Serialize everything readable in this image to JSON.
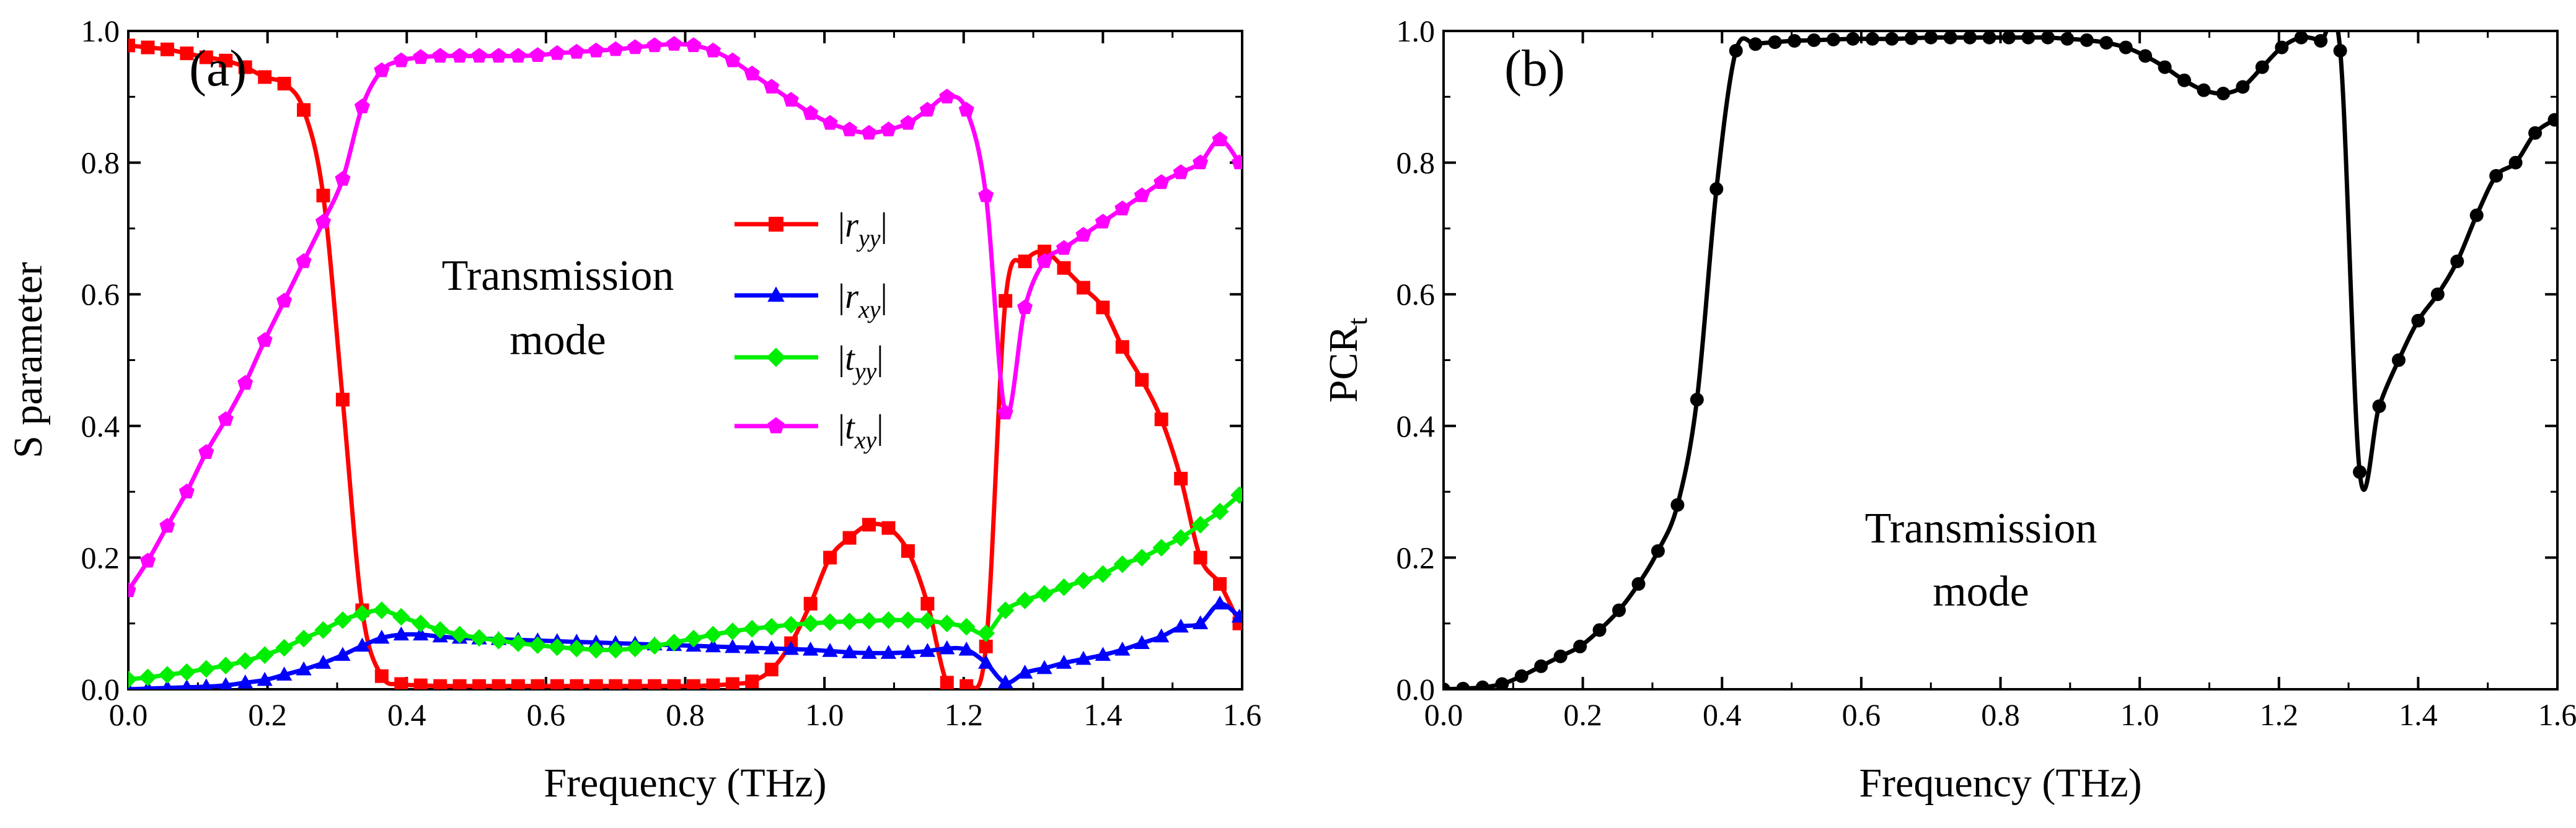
{
  "figure": {
    "panels": [
      "(a)",
      "(b)"
    ]
  },
  "chart_data": [
    {
      "type": "line",
      "panel_label": "(a)",
      "annotation": [
        "Transmission",
        "mode"
      ],
      "xlabel": "Frequency (THz)",
      "ylabel": "S parameter",
      "xlim": [
        0,
        1.6
      ],
      "ylim": [
        0,
        1.0
      ],
      "xticks": [
        "0.0",
        "0.2",
        "0.4",
        "0.6",
        "0.8",
        "1.0",
        "1.2",
        "1.4",
        "1.6"
      ],
      "yticks": [
        "0.0",
        "0.2",
        "0.4",
        "0.6",
        "0.8",
        "1.0"
      ],
      "grid": false,
      "legend_position": "center",
      "series": [
        {
          "name": "|r_yy|",
          "legend_main": "r",
          "legend_sub": "yy",
          "color": "#ff0000",
          "marker": "square",
          "x": [
            0.0,
            0.028,
            0.056,
            0.084,
            0.112,
            0.14,
            0.168,
            0.196,
            0.224,
            0.252,
            0.28,
            0.308,
            0.336,
            0.364,
            0.392,
            0.42,
            0.448,
            0.476,
            0.504,
            0.532,
            0.56,
            0.588,
            0.616,
            0.644,
            0.672,
            0.7,
            0.728,
            0.756,
            0.784,
            0.812,
            0.84,
            0.868,
            0.896,
            0.924,
            0.952,
            0.98,
            1.008,
            1.036,
            1.064,
            1.092,
            1.12,
            1.148,
            1.176,
            1.204,
            1.232,
            1.26,
            1.288,
            1.316,
            1.344,
            1.372,
            1.4,
            1.428,
            1.456,
            1.484,
            1.512,
            1.54,
            1.568,
            1.596
          ],
          "y": [
            0.978,
            0.975,
            0.972,
            0.966,
            0.96,
            0.955,
            0.945,
            0.93,
            0.92,
            0.88,
            0.75,
            0.44,
            0.12,
            0.02,
            0.008,
            0.006,
            0.005,
            0.005,
            0.005,
            0.005,
            0.005,
            0.005,
            0.005,
            0.005,
            0.005,
            0.005,
            0.005,
            0.005,
            0.005,
            0.005,
            0.006,
            0.008,
            0.012,
            0.03,
            0.07,
            0.13,
            0.2,
            0.23,
            0.25,
            0.245,
            0.21,
            0.13,
            0.01,
            0.005,
            0.065,
            0.59,
            0.65,
            0.665,
            0.64,
            0.61,
            0.58,
            0.52,
            0.47,
            0.41,
            0.32,
            0.2,
            0.16,
            0.1
          ]
        },
        {
          "name": "|r_xy|",
          "legend_main": "r",
          "legend_sub": "xy",
          "color": "#0000ff",
          "marker": "triangle",
          "x": [
            0.0,
            0.028,
            0.056,
            0.084,
            0.112,
            0.14,
            0.168,
            0.196,
            0.224,
            0.252,
            0.28,
            0.308,
            0.336,
            0.364,
            0.392,
            0.42,
            0.448,
            0.476,
            0.504,
            0.532,
            0.56,
            0.588,
            0.616,
            0.644,
            0.672,
            0.7,
            0.728,
            0.756,
            0.784,
            0.812,
            0.84,
            0.868,
            0.896,
            0.924,
            0.952,
            0.98,
            1.008,
            1.036,
            1.064,
            1.092,
            1.12,
            1.148,
            1.176,
            1.204,
            1.232,
            1.26,
            1.288,
            1.316,
            1.344,
            1.372,
            1.4,
            1.428,
            1.456,
            1.484,
            1.512,
            1.54,
            1.568,
            1.596
          ],
          "y": [
            0.0,
            0.001,
            0.002,
            0.003,
            0.004,
            0.006,
            0.01,
            0.014,
            0.022,
            0.03,
            0.04,
            0.052,
            0.066,
            0.078,
            0.083,
            0.083,
            0.08,
            0.078,
            0.077,
            0.076,
            0.075,
            0.074,
            0.073,
            0.072,
            0.071,
            0.07,
            0.069,
            0.068,
            0.067,
            0.066,
            0.065,
            0.064,
            0.063,
            0.062,
            0.061,
            0.06,
            0.058,
            0.056,
            0.055,
            0.055,
            0.056,
            0.058,
            0.062,
            0.06,
            0.04,
            0.01,
            0.025,
            0.032,
            0.04,
            0.046,
            0.052,
            0.06,
            0.07,
            0.08,
            0.095,
            0.1,
            0.13,
            0.11
          ]
        },
        {
          "name": "|t_yy|",
          "legend_main": "t",
          "legend_sub": "yy",
          "color": "#00ee00",
          "marker": "diamond",
          "x": [
            0.0,
            0.028,
            0.056,
            0.084,
            0.112,
            0.14,
            0.168,
            0.196,
            0.224,
            0.252,
            0.28,
            0.308,
            0.336,
            0.364,
            0.392,
            0.42,
            0.448,
            0.476,
            0.504,
            0.532,
            0.56,
            0.588,
            0.616,
            0.644,
            0.672,
            0.7,
            0.728,
            0.756,
            0.784,
            0.812,
            0.84,
            0.868,
            0.896,
            0.924,
            0.952,
            0.98,
            1.008,
            1.036,
            1.064,
            1.092,
            1.12,
            1.148,
            1.176,
            1.204,
            1.232,
            1.26,
            1.288,
            1.316,
            1.344,
            1.372,
            1.4,
            1.428,
            1.456,
            1.484,
            1.512,
            1.54,
            1.568,
            1.596
          ],
          "y": [
            0.015,
            0.018,
            0.022,
            0.026,
            0.031,
            0.036,
            0.043,
            0.052,
            0.063,
            0.077,
            0.09,
            0.105,
            0.115,
            0.12,
            0.11,
            0.1,
            0.09,
            0.083,
            0.078,
            0.074,
            0.07,
            0.067,
            0.064,
            0.062,
            0.06,
            0.06,
            0.062,
            0.066,
            0.071,
            0.077,
            0.083,
            0.088,
            0.092,
            0.095,
            0.098,
            0.1,
            0.102,
            0.103,
            0.104,
            0.105,
            0.105,
            0.104,
            0.1,
            0.095,
            0.085,
            0.12,
            0.135,
            0.145,
            0.155,
            0.165,
            0.175,
            0.19,
            0.2,
            0.215,
            0.23,
            0.25,
            0.27,
            0.295
          ]
        },
        {
          "name": "|t_xy|",
          "legend_main": "t",
          "legend_sub": "xy",
          "color": "#ff00ff",
          "marker": "pentagon",
          "x": [
            0.0,
            0.028,
            0.056,
            0.084,
            0.112,
            0.14,
            0.168,
            0.196,
            0.224,
            0.252,
            0.28,
            0.308,
            0.336,
            0.364,
            0.392,
            0.42,
            0.448,
            0.476,
            0.504,
            0.532,
            0.56,
            0.588,
            0.616,
            0.644,
            0.672,
            0.7,
            0.728,
            0.756,
            0.784,
            0.812,
            0.84,
            0.868,
            0.896,
            0.924,
            0.952,
            0.98,
            1.008,
            1.036,
            1.064,
            1.092,
            1.12,
            1.148,
            1.176,
            1.204,
            1.232,
            1.26,
            1.288,
            1.316,
            1.344,
            1.372,
            1.4,
            1.428,
            1.456,
            1.484,
            1.512,
            1.54,
            1.568,
            1.596
          ],
          "y": [
            0.15,
            0.195,
            0.248,
            0.3,
            0.36,
            0.41,
            0.465,
            0.53,
            0.59,
            0.65,
            0.71,
            0.775,
            0.885,
            0.94,
            0.955,
            0.96,
            0.962,
            0.962,
            0.962,
            0.962,
            0.962,
            0.963,
            0.966,
            0.968,
            0.97,
            0.972,
            0.975,
            0.978,
            0.98,
            0.978,
            0.97,
            0.955,
            0.935,
            0.915,
            0.895,
            0.875,
            0.86,
            0.85,
            0.845,
            0.85,
            0.86,
            0.88,
            0.9,
            0.88,
            0.75,
            0.42,
            0.58,
            0.65,
            0.67,
            0.69,
            0.71,
            0.73,
            0.75,
            0.77,
            0.785,
            0.8,
            0.835,
            0.8
          ]
        }
      ]
    },
    {
      "type": "line",
      "panel_label": "(b)",
      "annotation": [
        "Transmission",
        "mode"
      ],
      "xlabel": "Frequency (THz)",
      "ylabel_main": "PCR",
      "ylabel_sub": "t",
      "xlim": [
        0,
        1.6
      ],
      "ylim": [
        0,
        1.0
      ],
      "xticks": [
        "0.0",
        "0.2",
        "0.4",
        "0.6",
        "0.8",
        "1.0",
        "1.2",
        "1.4",
        "1.6"
      ],
      "yticks": [
        "0.0",
        "0.2",
        "0.4",
        "0.6",
        "0.8",
        "1.0"
      ],
      "grid": false,
      "series": [
        {
          "name": "PCR_t",
          "color": "#000000",
          "marker": "circle",
          "x": [
            0.0,
            0.028,
            0.056,
            0.084,
            0.112,
            0.14,
            0.168,
            0.196,
            0.224,
            0.252,
            0.28,
            0.308,
            0.336,
            0.364,
            0.392,
            0.42,
            0.448,
            0.476,
            0.504,
            0.532,
            0.56,
            0.588,
            0.616,
            0.644,
            0.672,
            0.7,
            0.728,
            0.756,
            0.784,
            0.812,
            0.84,
            0.868,
            0.896,
            0.924,
            0.952,
            0.98,
            1.008,
            1.036,
            1.064,
            1.092,
            1.12,
            1.148,
            1.176,
            1.204,
            1.232,
            1.26,
            1.288,
            1.316,
            1.344,
            1.372,
            1.4,
            1.428,
            1.456,
            1.484,
            1.512,
            1.54,
            1.568,
            1.596
          ],
          "y": [
            0.0,
            0.001,
            0.003,
            0.008,
            0.02,
            0.035,
            0.05,
            0.065,
            0.09,
            0.12,
            0.16,
            0.21,
            0.28,
            0.44,
            0.76,
            0.97,
            0.98,
            0.983,
            0.985,
            0.986,
            0.987,
            0.988,
            0.988,
            0.988,
            0.989,
            0.99,
            0.99,
            0.99,
            0.99,
            0.99,
            0.99,
            0.99,
            0.988,
            0.986,
            0.982,
            0.975,
            0.962,
            0.945,
            0.925,
            0.91,
            0.905,
            0.915,
            0.945,
            0.975,
            0.99,
            0.985,
            0.97,
            0.33,
            0.43,
            0.5,
            0.56,
            0.6,
            0.65,
            0.72,
            0.78,
            0.8,
            0.845,
            0.865
          ]
        }
      ]
    }
  ]
}
